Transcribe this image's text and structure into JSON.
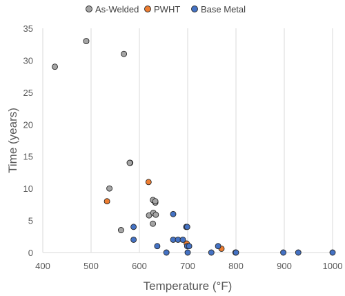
{
  "chart_data": {
    "type": "scatter",
    "title": "",
    "xlabel": "Temperature (°F)",
    "ylabel": "Time (years)",
    "xlim": [
      400,
      1000
    ],
    "ylim": [
      0,
      35
    ],
    "x_ticks": [
      400,
      500,
      600,
      700,
      800,
      900,
      1000
    ],
    "y_ticks": [
      0,
      5,
      10,
      15,
      20,
      25,
      30,
      35
    ],
    "grid": "vertical",
    "legend_position": "top",
    "series": [
      {
        "name": "As-Welded",
        "color": "#a5a5a5",
        "points": [
          [
            425,
            29
          ],
          [
            490,
            33
          ],
          [
            568,
            31
          ],
          [
            538,
            10
          ],
          [
            562,
            3.5
          ],
          [
            581,
            14
          ],
          [
            580,
            14
          ],
          [
            620,
            5.8
          ],
          [
            628,
            8.2
          ],
          [
            629,
            6.2
          ],
          [
            628,
            4.5
          ],
          [
            633,
            7.8
          ],
          [
            633,
            8
          ],
          [
            634,
            5.9
          ]
        ]
      },
      {
        "name": "PWHT",
        "color": "#ed7d31",
        "points": [
          [
            533,
            8
          ],
          [
            619,
            11
          ],
          [
            698,
            1.4
          ],
          [
            770,
            0.6
          ]
        ]
      },
      {
        "name": "Base Metal",
        "color": "#4472c4",
        "points": [
          [
            588,
            4
          ],
          [
            588,
            2
          ],
          [
            637,
            1
          ],
          [
            656,
            0
          ],
          [
            670,
            6
          ],
          [
            670,
            2
          ],
          [
            680,
            2
          ],
          [
            690,
            2
          ],
          [
            697,
            4
          ],
          [
            699,
            4
          ],
          [
            700,
            0
          ],
          [
            699,
            1
          ],
          [
            703,
            1
          ],
          [
            749,
            0
          ],
          [
            763,
            1
          ],
          [
            799,
            0
          ],
          [
            800,
            0
          ],
          [
            898,
            0
          ],
          [
            929,
            0
          ],
          [
            1000,
            0
          ]
        ]
      }
    ]
  }
}
